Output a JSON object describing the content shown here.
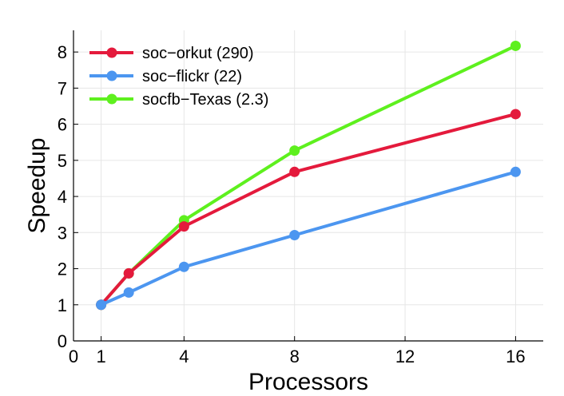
{
  "chart_data": {
    "type": "line",
    "xlabel": "Processors",
    "ylabel": "Speedup",
    "xlim": [
      0,
      17
    ],
    "ylim": [
      0,
      8.6
    ],
    "x_ticks": [
      0,
      1,
      4,
      8,
      12,
      16
    ],
    "y_ticks": [
      0,
      1,
      2,
      3,
      4,
      5,
      6,
      7,
      8
    ],
    "grid": true,
    "legend_position": "top-left",
    "series": [
      {
        "name": "soc−orkut (290)",
        "color": "#e41a3c",
        "x": [
          1,
          2,
          4,
          8,
          16
        ],
        "y": [
          1.0,
          1.87,
          3.17,
          4.68,
          6.28
        ]
      },
      {
        "name": "soc−flickr (22)",
        "color": "#4c96f0",
        "x": [
          1,
          2,
          4,
          8,
          16
        ],
        "y": [
          1.0,
          1.34,
          2.05,
          2.93,
          4.68
        ]
      },
      {
        "name": "socfb−Texas (2.3)",
        "color": "#5ef01e",
        "x": [
          1,
          2,
          4,
          8,
          16
        ],
        "y": [
          1.0,
          1.87,
          3.34,
          5.27,
          8.17
        ]
      }
    ]
  }
}
